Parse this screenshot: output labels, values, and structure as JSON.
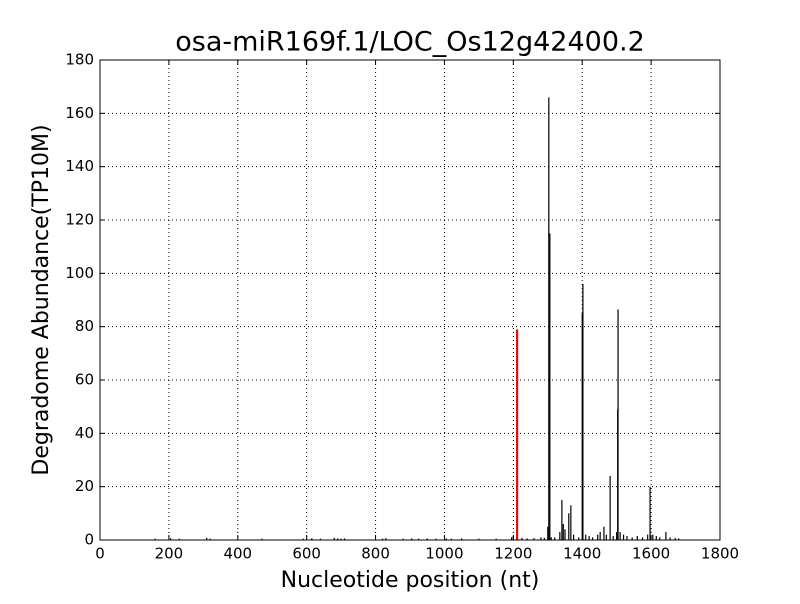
{
  "chart_data": {
    "type": "stem",
    "title": "osa-miR169f.1/LOC_Os12g42400.2",
    "x_label": "Nucleotide position (nt)",
    "y_label": "Degradome Abundance(TP10M)",
    "xlim": [
      0,
      1800
    ],
    "xticks": [
      0,
      200,
      400,
      600,
      800,
      1000,
      1200,
      1400,
      1600,
      1800
    ],
    "ylim": [
      0,
      180
    ],
    "yticks": [
      0,
      20,
      40,
      60,
      80,
      100,
      120,
      140,
      160,
      180
    ],
    "grid": true,
    "series": [
      {
        "color": "#000000",
        "x": [
          160,
          205,
          230,
          310,
          320,
          470,
          590,
          615,
          640,
          680,
          690,
          700,
          710,
          820,
          830,
          880,
          905,
          925,
          950,
          975,
          1005,
          1020,
          1050,
          1100,
          1150,
          1195,
          1200,
          1225,
          1240,
          1260,
          1280,
          1290,
          1300,
          1303,
          1306,
          1310,
          1320,
          1335,
          1341,
          1345,
          1350,
          1361,
          1367,
          1375,
          1390,
          1400,
          1402,
          1410,
          1420,
          1430,
          1445,
          1452,
          1463,
          1470,
          1481,
          1490,
          1500,
          1503,
          1504,
          1510,
          1520,
          1530,
          1545,
          1560,
          1575,
          1590,
          1597,
          1605,
          1615,
          1625,
          1643,
          1655,
          1670,
          1680
        ],
        "values": [
          0.5,
          0.7,
          0.5,
          0.8,
          0.5,
          0.5,
          0.5,
          0.7,
          0.5,
          0.8,
          0.6,
          0.5,
          0.6,
          0.5,
          0.7,
          0.5,
          0.6,
          0.5,
          0.6,
          0.5,
          0.6,
          0.5,
          0.6,
          0.5,
          0.5,
          1,
          1.5,
          0.8,
          0.6,
          0.7,
          1,
          0.8,
          5,
          166,
          115,
          1,
          1,
          3,
          15,
          6,
          4,
          10,
          13,
          2,
          1,
          85,
          96,
          2,
          1.5,
          1,
          2,
          3,
          5,
          2,
          24,
          1.5,
          3,
          49,
          86.5,
          3,
          2,
          1.5,
          1,
          1.5,
          1,
          2,
          20,
          2,
          1.5,
          1,
          3,
          1,
          0.8,
          0.6
        ]
      },
      {
        "color": "#ff0000",
        "x": [
          1211
        ],
        "values": [
          79
        ]
      }
    ]
  }
}
